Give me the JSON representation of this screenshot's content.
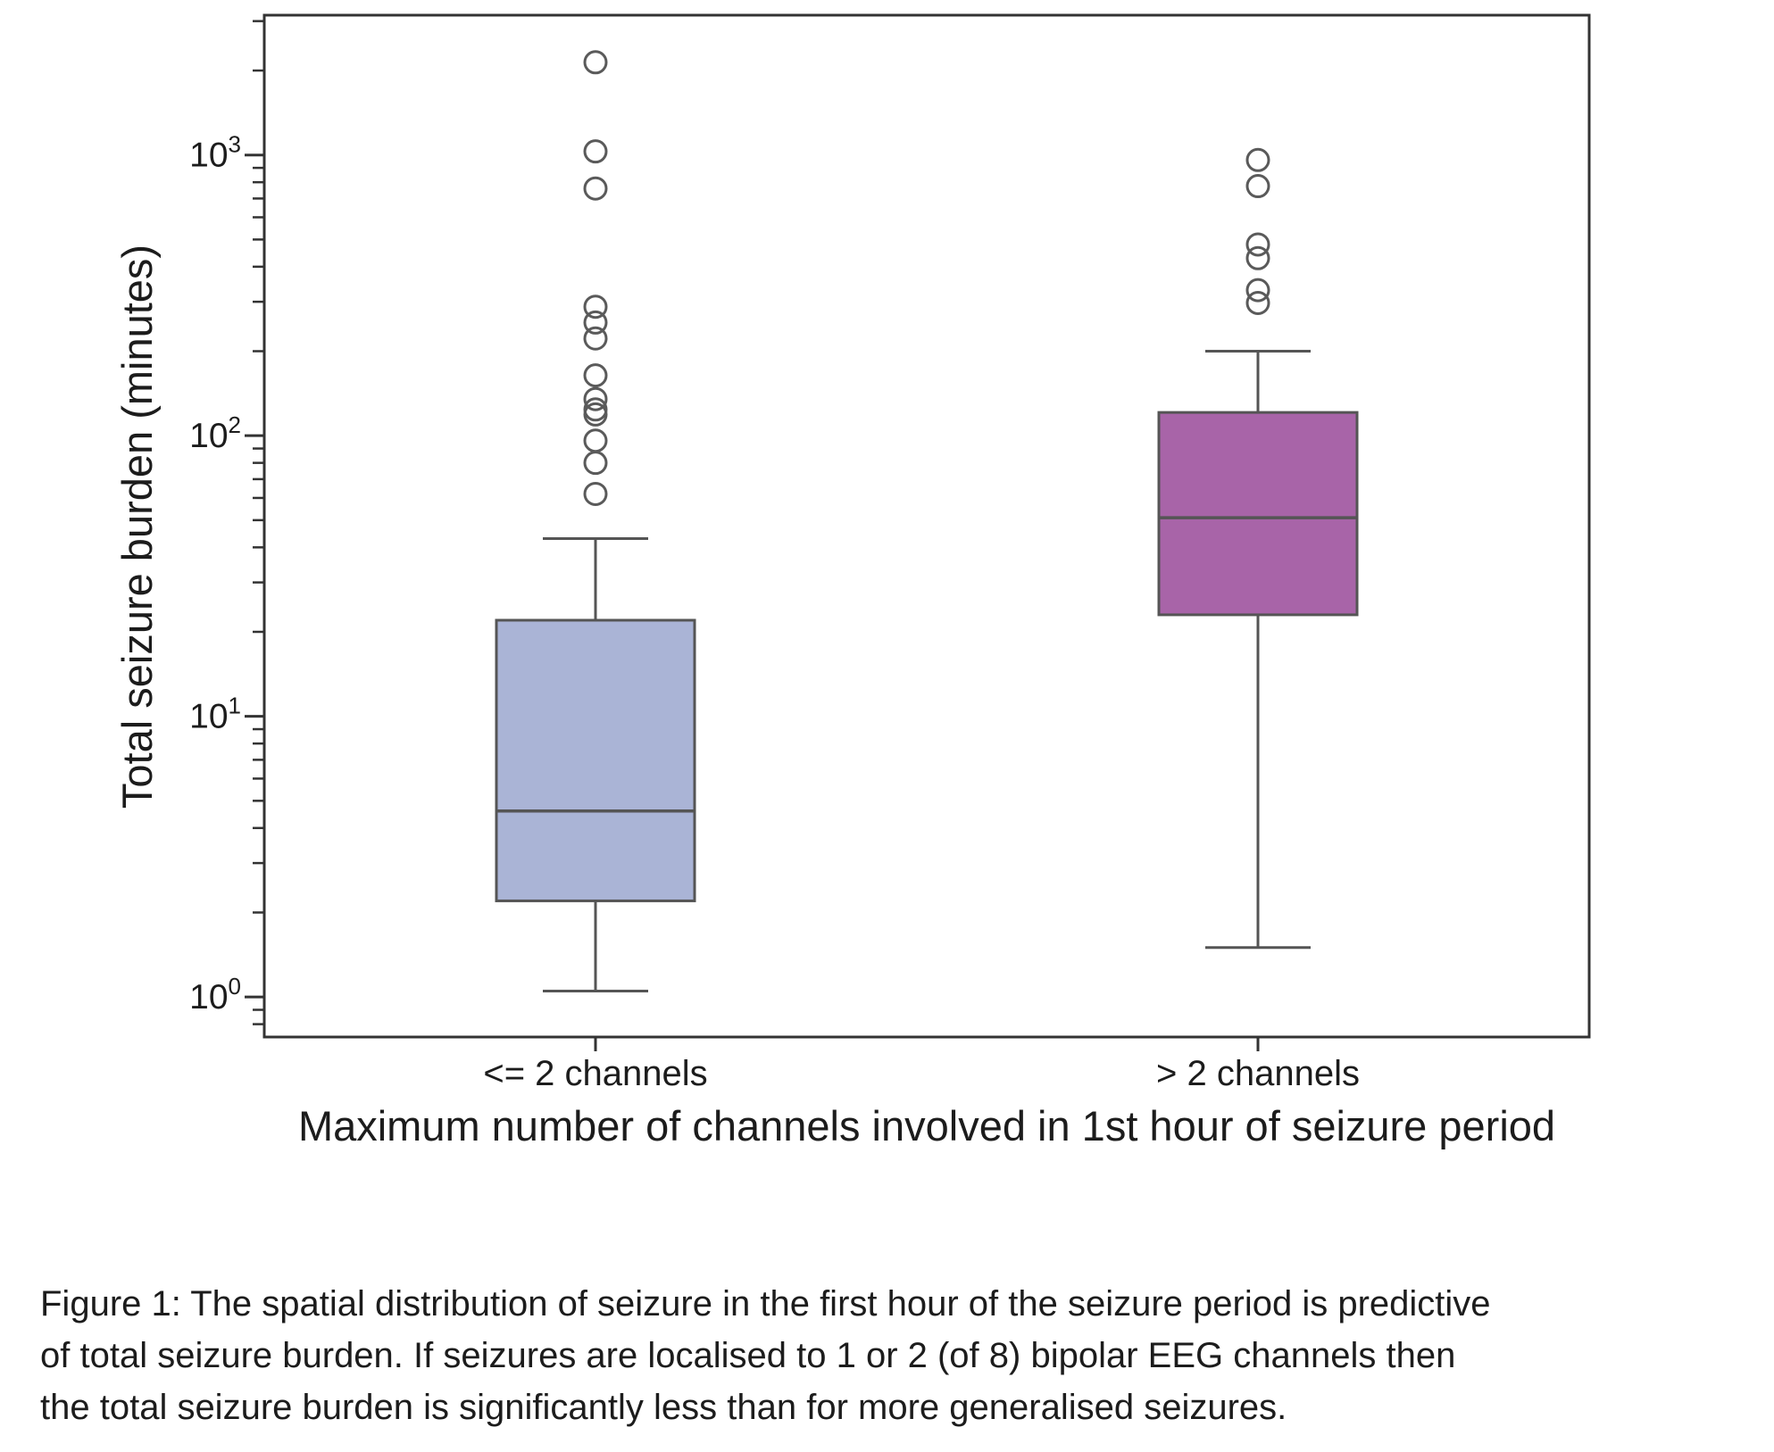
{
  "figure": {
    "caption_lines": [
      "Figure 1: The spatial distribution of seizure in the first hour of the seizure period is predictive",
      "of total seizure burden. If seizures are localised to 1 or 2 (of 8) bipolar EEG channels then",
      "the total seizure burden is significantly less than for more generalised seizures."
    ]
  },
  "chart_data": {
    "type": "box",
    "title": "",
    "xlabel": "Maximum number of channels involved in 1st hour of seizure period",
    "ylabel": "Total seizure burden (minutes)",
    "y_scale": "log",
    "ylim": [
      0.72,
      3150
    ],
    "grid": false,
    "categories": [
      "<= 2 channels",
      "> 2 channels"
    ],
    "y_ticks": [
      {
        "value": 1,
        "base": "10",
        "exp": "0"
      },
      {
        "value": 10,
        "base": "10",
        "exp": "1"
      },
      {
        "value": 100,
        "base": "10",
        "exp": "2"
      },
      {
        "value": 1000,
        "base": "10",
        "exp": "3"
      }
    ],
    "boxes": [
      {
        "label": "<= 2 channels",
        "fill": "#aab4d6",
        "whisker_low": 1.05,
        "q1": 2.2,
        "median": 4.6,
        "q3": 22,
        "whisker_high": 43,
        "outliers": [
          62,
          80,
          96,
          119,
          124,
          135,
          164,
          222,
          253,
          288,
          760,
          1030,
          2140
        ]
      },
      {
        "label": "> 2 channels",
        "fill": "#a864a8",
        "whisker_low": 1.5,
        "q1": 23,
        "median": 51,
        "q3": 121,
        "whisker_high": 200,
        "outliers": [
          297,
          330,
          429,
          480,
          775,
          960
        ]
      }
    ],
    "colors": {
      "frame": "#333333",
      "box_border": "#555555",
      "whisker": "#555555",
      "outlier": "#5a5a5a",
      "text": "#1c1c1c"
    }
  }
}
